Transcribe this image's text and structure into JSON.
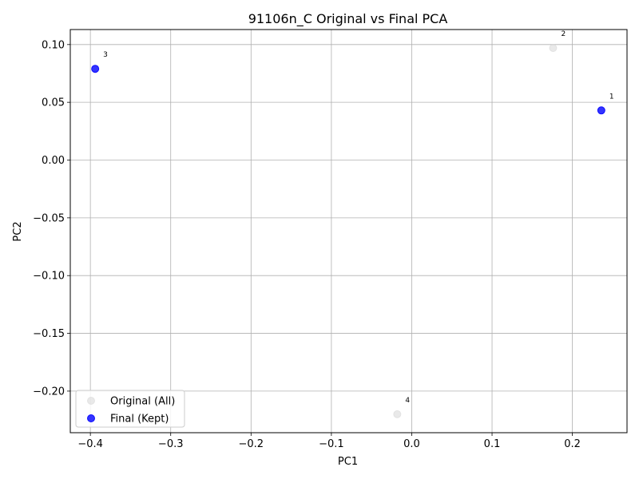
{
  "chart_data": {
    "type": "scatter",
    "title": "91106n_C Original vs Final PCA",
    "xlabel": "PC1",
    "ylabel": "PC2",
    "xlim": [
      -0.425,
      0.268
    ],
    "ylim": [
      -0.236,
      0.113
    ],
    "xticks": [
      -0.4,
      -0.3,
      -0.2,
      -0.1,
      0.0,
      0.1,
      0.2
    ],
    "xtick_labels": [
      "−0.4",
      "−0.3",
      "−0.2",
      "−0.1",
      "0.0",
      "0.1",
      "0.2"
    ],
    "yticks": [
      -0.2,
      -0.15,
      -0.1,
      -0.05,
      0.0,
      0.05,
      0.1
    ],
    "ytick_labels": [
      "−0.20",
      "−0.15",
      "−0.10",
      "−0.05",
      "0.00",
      "0.05",
      "0.10"
    ],
    "grid": true,
    "legend_position": "lower-left",
    "series": [
      {
        "name": "Original (All)",
        "color": "#d3d3d3",
        "points": [
          {
            "label": "2",
            "x": 0.176,
            "y": 0.097
          },
          {
            "label": "4",
            "x": -0.018,
            "y": -0.22
          }
        ]
      },
      {
        "name": "Final (Kept)",
        "color": "#0000ff",
        "points": [
          {
            "label": "3",
            "x": -0.394,
            "y": 0.079
          },
          {
            "label": "1",
            "x": 0.236,
            "y": 0.043
          }
        ]
      }
    ]
  }
}
